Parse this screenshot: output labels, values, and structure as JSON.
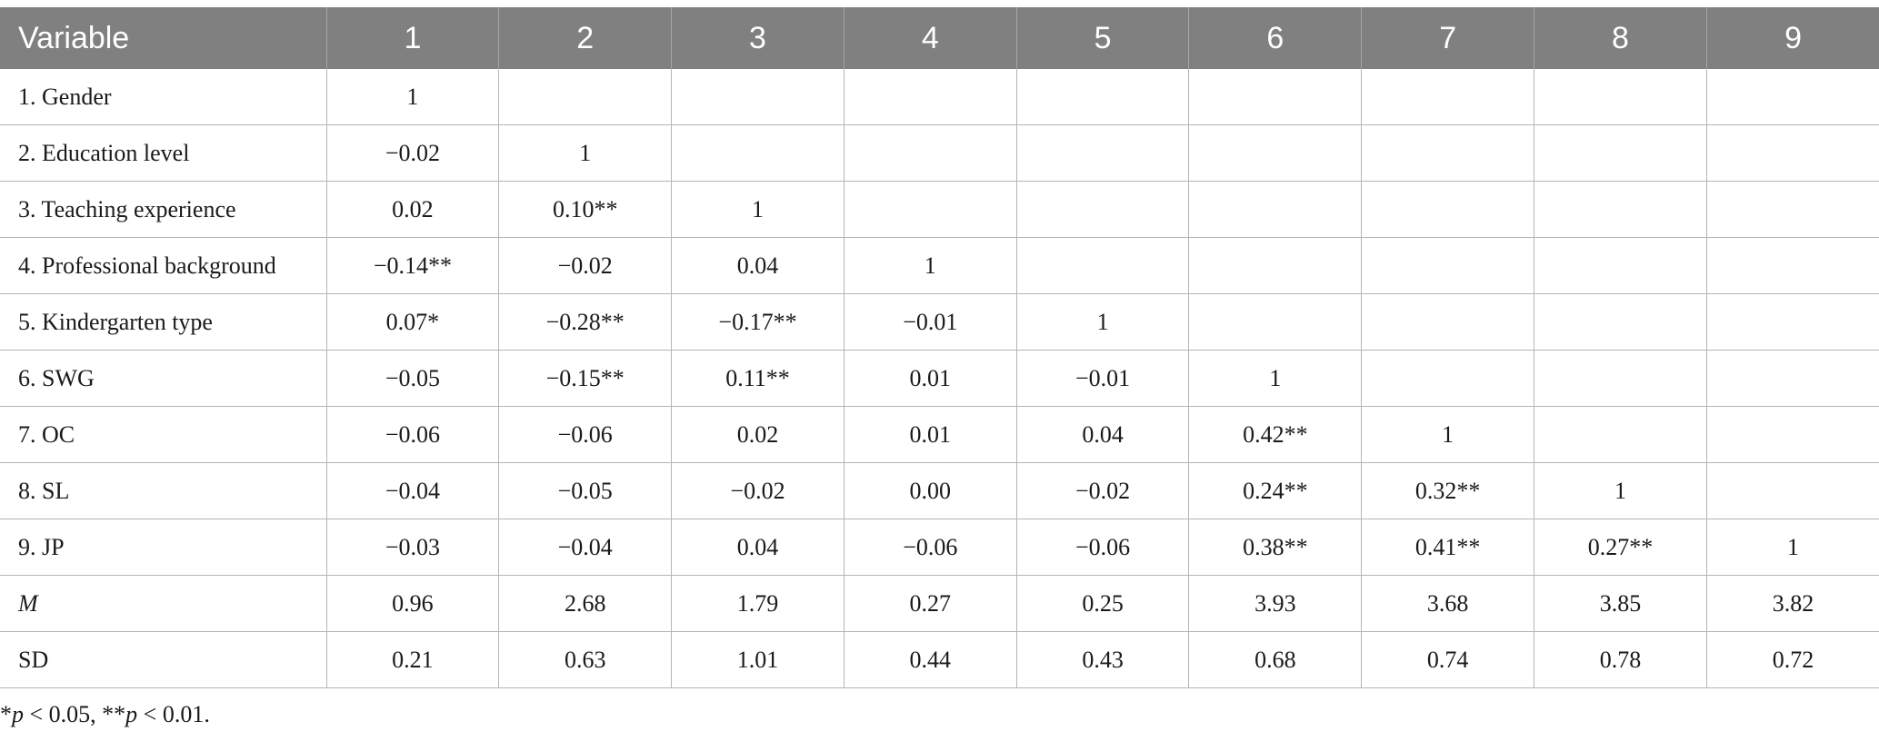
{
  "table": {
    "columns": [
      "Variable",
      "1",
      "2",
      "3",
      "4",
      "5",
      "6",
      "7",
      "8",
      "9"
    ],
    "rows": [
      {
        "label": "1. Gender",
        "italic": false,
        "values": [
          "1",
          "",
          "",
          "",
          "",
          "",
          "",
          "",
          ""
        ]
      },
      {
        "label": "2. Education level",
        "italic": false,
        "values": [
          "−0.02",
          "1",
          "",
          "",
          "",
          "",
          "",
          "",
          ""
        ]
      },
      {
        "label": "3. Teaching experience",
        "italic": false,
        "values": [
          "0.02",
          "0.10**",
          "1",
          "",
          "",
          "",
          "",
          "",
          ""
        ]
      },
      {
        "label": "4. Professional background",
        "italic": false,
        "values": [
          "−0.14**",
          "−0.02",
          "0.04",
          "1",
          "",
          "",
          "",
          "",
          ""
        ]
      },
      {
        "label": "5. Kindergarten type",
        "italic": false,
        "values": [
          "0.07*",
          "−0.28**",
          "−0.17**",
          "−0.01",
          "1",
          "",
          "",
          "",
          ""
        ]
      },
      {
        "label": "6. SWG",
        "italic": false,
        "values": [
          "−0.05",
          "−0.15**",
          "0.11**",
          "0.01",
          "−0.01",
          "1",
          "",
          "",
          ""
        ]
      },
      {
        "label": "7. OC",
        "italic": false,
        "values": [
          "−0.06",
          "−0.06",
          "0.02",
          "0.01",
          "0.04",
          "0.42**",
          "1",
          "",
          ""
        ]
      },
      {
        "label": "8. SL",
        "italic": false,
        "values": [
          "−0.04",
          "−0.05",
          "−0.02",
          "0.00",
          "−0.02",
          "0.24**",
          "0.32**",
          "1",
          ""
        ]
      },
      {
        "label": "9. JP",
        "italic": false,
        "values": [
          "−0.03",
          "−0.04",
          "0.04",
          "−0.06",
          "−0.06",
          "0.38**",
          "0.41**",
          "0.27**",
          "1"
        ]
      },
      {
        "label": "M",
        "italic": true,
        "values": [
          "0.96",
          "2.68",
          "1.79",
          "0.27",
          "0.25",
          "3.93",
          "3.68",
          "3.85",
          "3.82"
        ]
      },
      {
        "label": "SD",
        "italic": false,
        "values": [
          "0.21",
          "0.63",
          "1.01",
          "0.44",
          "0.43",
          "0.68",
          "0.74",
          "0.78",
          "0.72"
        ]
      }
    ]
  },
  "footnote": {
    "star1": "*",
    "p1": "p",
    "text1": " < 0.05, **",
    "p2": "p",
    "text2": " < 0.01."
  }
}
